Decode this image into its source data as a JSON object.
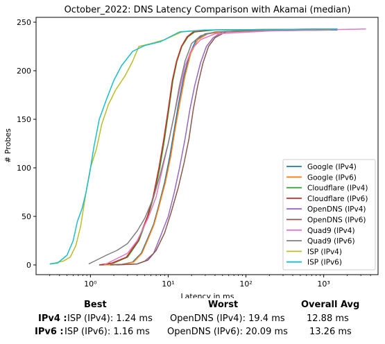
{
  "chart_data": {
    "type": "line",
    "title": "October_2022: DNS Latency Comparison with Akamai (median)",
    "xlabel": "Latency in ms",
    "ylabel": "# Probes",
    "xscale": "log",
    "xlim": [
      0.2,
      5000
    ],
    "ylim": [
      -10,
      255
    ],
    "x_ticks": [
      1,
      10,
      100,
      1000
    ],
    "x_tick_labels": [
      "10⁰",
      "10¹",
      "10²",
      "10³"
    ],
    "y_ticks": [
      0,
      50,
      100,
      150,
      200,
      250
    ],
    "y_tick_labels": [
      "0",
      "50",
      "100",
      "150",
      "200",
      "250"
    ],
    "grid": false,
    "legend_position": "lower right",
    "series": [
      {
        "name": "Google (IPv4)",
        "color": "#1f77b4",
        "points": [
          [
            1.3,
            0
          ],
          [
            2.5,
            0.5
          ],
          [
            3.5,
            3
          ],
          [
            4.5,
            12
          ],
          [
            5.5,
            28
          ],
          [
            6.5,
            42
          ],
          [
            7.5,
            60
          ],
          [
            9,
            85
          ],
          [
            10.5,
            112
          ],
          [
            12,
            140
          ],
          [
            13.5,
            165
          ],
          [
            16,
            195
          ],
          [
            19,
            218
          ],
          [
            23,
            232
          ],
          [
            30,
            238
          ],
          [
            45,
            240
          ],
          [
            100,
            241
          ],
          [
            1500,
            242
          ]
        ]
      },
      {
        "name": "Google (IPv6)",
        "color": "#ff7f0e",
        "points": [
          [
            1.4,
            0
          ],
          [
            2.6,
            0.5
          ],
          [
            3.6,
            3
          ],
          [
            4.6,
            12
          ],
          [
            5.6,
            28
          ],
          [
            6.6,
            42
          ],
          [
            7.6,
            60
          ],
          [
            9.2,
            85
          ],
          [
            10.8,
            112
          ],
          [
            12.3,
            140
          ],
          [
            14,
            165
          ],
          [
            16.5,
            195
          ],
          [
            19.5,
            218
          ],
          [
            24,
            232
          ],
          [
            32,
            238
          ],
          [
            50,
            240
          ],
          [
            120,
            241
          ],
          [
            1200,
            242
          ]
        ]
      },
      {
        "name": "Cloudflare (IPv4)",
        "color": "#2ca02c",
        "points": [
          [
            1.4,
            0
          ],
          [
            2,
            2
          ],
          [
            3,
            8
          ],
          [
            4.2,
            25
          ],
          [
            5.5,
            50
          ],
          [
            6.5,
            70
          ],
          [
            7.8,
            100
          ],
          [
            9,
            130
          ],
          [
            10.2,
            160
          ],
          [
            11.5,
            190
          ],
          [
            13,
            210
          ],
          [
            15,
            225
          ],
          [
            18,
            235
          ],
          [
            22,
            240
          ],
          [
            40,
            242
          ],
          [
            1500,
            243
          ]
        ]
      },
      {
        "name": "Cloudflare (IPv6)",
        "color": "#d62728",
        "points": [
          [
            1.3,
            0
          ],
          [
            1.9,
            2
          ],
          [
            2.9,
            8
          ],
          [
            4.1,
            25
          ],
          [
            5.4,
            50
          ],
          [
            6.4,
            70
          ],
          [
            7.6,
            100
          ],
          [
            8.8,
            130
          ],
          [
            10,
            160
          ],
          [
            11.3,
            190
          ],
          [
            12.8,
            210
          ],
          [
            14.8,
            225
          ],
          [
            17.5,
            235
          ],
          [
            21,
            240
          ],
          [
            35,
            242
          ],
          [
            1200,
            243
          ]
        ]
      },
      {
        "name": "OpenDNS (IPv4)",
        "color": "#9467bd",
        "points": [
          [
            2.2,
            0
          ],
          [
            4,
            1
          ],
          [
            5,
            4
          ],
          [
            6.5,
            12
          ],
          [
            8,
            30
          ],
          [
            10,
            50
          ],
          [
            12,
            75
          ],
          [
            14,
            100
          ],
          [
            16.5,
            130
          ],
          [
            19,
            160
          ],
          [
            22,
            185
          ],
          [
            26,
            208
          ],
          [
            31,
            225
          ],
          [
            38,
            234
          ],
          [
            50,
            240
          ],
          [
            120,
            242
          ],
          [
            800,
            242
          ]
        ]
      },
      {
        "name": "OpenDNS (IPv6)",
        "color": "#8c564b",
        "points": [
          [
            1.8,
            0
          ],
          [
            4,
            1
          ],
          [
            5.5,
            5
          ],
          [
            7,
            15
          ],
          [
            9,
            33
          ],
          [
            11,
            55
          ],
          [
            13.5,
            80
          ],
          [
            16,
            105
          ],
          [
            18.5,
            130
          ],
          [
            21,
            160
          ],
          [
            24,
            185
          ],
          [
            28,
            208
          ],
          [
            33,
            225
          ],
          [
            40,
            234
          ],
          [
            55,
            240
          ],
          [
            150,
            242
          ],
          [
            900,
            242
          ]
        ]
      },
      {
        "name": "Quad9 (IPv4)",
        "color": "#e377c2",
        "points": [
          [
            1.5,
            0
          ],
          [
            2,
            5
          ],
          [
            3,
            12
          ],
          [
            4,
            25
          ],
          [
            5.5,
            48
          ],
          [
            7,
            70
          ],
          [
            8.5,
            100
          ],
          [
            10,
            125
          ],
          [
            12,
            155
          ],
          [
            14,
            180
          ],
          [
            16.5,
            205
          ],
          [
            20,
            222
          ],
          [
            26,
            232
          ],
          [
            40,
            238
          ],
          [
            200,
            241
          ],
          [
            3500,
            243
          ]
        ]
      },
      {
        "name": "Quad9 (IPv6)",
        "color": "#7f7f7f",
        "points": [
          [
            0.95,
            1
          ],
          [
            1.2,
            5
          ],
          [
            1.6,
            10
          ],
          [
            2.2,
            15
          ],
          [
            3,
            22
          ],
          [
            4,
            35
          ],
          [
            5,
            48
          ],
          [
            6.5,
            70
          ],
          [
            8,
            95
          ],
          [
            10,
            125
          ],
          [
            12,
            155
          ],
          [
            14,
            185
          ],
          [
            16.5,
            210
          ],
          [
            20,
            228
          ],
          [
            26,
            236
          ],
          [
            40,
            240
          ],
          [
            200,
            242
          ],
          [
            1500,
            243
          ]
        ]
      },
      {
        "name": "ISP (IPv4)",
        "color": "#bcbd22",
        "points": [
          [
            0.3,
            1
          ],
          [
            0.35,
            2
          ],
          [
            0.45,
            4
          ],
          [
            0.55,
            8
          ],
          [
            0.65,
            20
          ],
          [
            0.75,
            40
          ],
          [
            0.82,
            60
          ],
          [
            0.9,
            80
          ],
          [
            1.0,
            100
          ],
          [
            1.2,
            120
          ],
          [
            1.4,
            145
          ],
          [
            1.7,
            165
          ],
          [
            2.1,
            180
          ],
          [
            2.8,
            195
          ],
          [
            3.5,
            210
          ],
          [
            4.2,
            225
          ],
          [
            6,
            228
          ],
          [
            9,
            232
          ],
          [
            15,
            240
          ],
          [
            30,
            242
          ],
          [
            1500,
            243
          ]
        ]
      },
      {
        "name": "ISP (IPv6)",
        "color": "#17becf",
        "points": [
          [
            0.3,
            1
          ],
          [
            0.38,
            2
          ],
          [
            0.42,
            5
          ],
          [
            0.5,
            10
          ],
          [
            0.6,
            25
          ],
          [
            0.68,
            45
          ],
          [
            0.78,
            58
          ],
          [
            0.88,
            75
          ],
          [
            0.98,
            95
          ],
          [
            1.1,
            120
          ],
          [
            1.3,
            150
          ],
          [
            1.6,
            170
          ],
          [
            2.0,
            190
          ],
          [
            2.5,
            205
          ],
          [
            3.5,
            220
          ],
          [
            5,
            226
          ],
          [
            8,
            230
          ],
          [
            14,
            240
          ],
          [
            30,
            242
          ],
          [
            1500,
            243
          ]
        ]
      }
    ]
  },
  "summary": {
    "col_best": "Best",
    "col_worst": "Worst",
    "col_avg": "Overall Avg",
    "rows": [
      {
        "label": "IPv4 :",
        "best": "ISP (IPv4): 1.24 ms",
        "worst": "OpenDNS (IPv4): 19.4 ms",
        "avg": "12.88 ms"
      },
      {
        "label": "IPv6 :",
        "best": "ISP (IPv6): 1.16 ms",
        "worst": "OpenDNS (IPv6): 20.09 ms",
        "avg": "13.26 ms"
      }
    ]
  }
}
